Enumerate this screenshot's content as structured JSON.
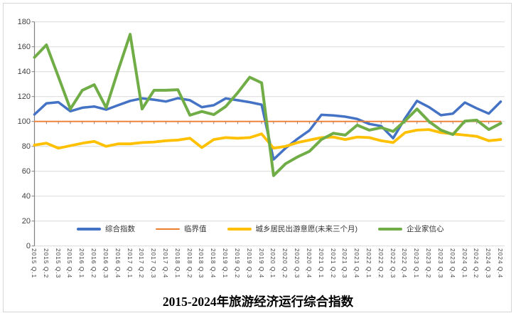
{
  "title": "2015-2024年旅游经济运行综合指数",
  "chart_data": {
    "type": "line",
    "title": "2015-2024年旅游经济运行综合指数",
    "xlabel": "",
    "ylabel": "",
    "ylim": [
      0,
      180
    ],
    "ytick_step": 20,
    "yticks": [
      "0",
      "20",
      "40",
      "60",
      "80",
      "100",
      "120",
      "140",
      "160",
      "180"
    ],
    "grid": true,
    "legend_position": "bottom-inside",
    "grid_color": "#d9d9d9",
    "axis_color": "#808080",
    "label_color": "#404040",
    "categories": [
      "2015 Q.1",
      "2015 Q.2",
      "2015 Q.3",
      "2015 Q.4",
      "2016 Q.1",
      "2016 Q.2",
      "2016 Q.3",
      "2016 Q.4",
      "2017 Q.1",
      "2017 Q.2",
      "2017 Q.3",
      "2017 Q.4",
      "2018 Q.1",
      "2018 Q.2",
      "2018 Q.3",
      "2018 Q.4",
      "2019 Q.1",
      "2019 Q.2",
      "2019 Q.3",
      "2019 Q.4",
      "2020 Q.1",
      "2020 Q.2",
      "2020 Q.3",
      "2020 Q.4",
      "2021 Q.1",
      "2021 Q.2",
      "2021 Q.3",
      "2021 Q.4",
      "2022 Q.1",
      "2022 Q.2",
      "2022 Q.3",
      "2022 Q.4",
      "2023 Q.1",
      "2023 Q.2",
      "2023 Q.3",
      "2023 Q.4",
      "2024 Q.1",
      "2024 Q.2",
      "2024 Q.3",
      "2024 Q.4"
    ],
    "series": [
      {
        "id": "composite-index",
        "name": "综合指数",
        "color": "#4472C4",
        "line_width": 3.5,
        "values": [
          105.6,
          114.5,
          115.5,
          108.2,
          111.0,
          112.0,
          109.5,
          113.0,
          116.5,
          118.5,
          117.5,
          116.0,
          118.7,
          117.0,
          111.5,
          113.0,
          118.5,
          117.0,
          115.5,
          113.5,
          69.5,
          78.5,
          86.0,
          92.8,
          105.3,
          104.8,
          103.8,
          102.0,
          98.0,
          96.3,
          86.5,
          102.5,
          116.5,
          111.5,
          105.0,
          106.3,
          115.2,
          110.5,
          106.3,
          115.9
        ]
      },
      {
        "id": "critical-value",
        "name": "临界值",
        "color": "#ED7D31",
        "line_width": 1.8,
        "values": [
          100,
          100,
          100,
          100,
          100,
          100,
          100,
          100,
          100,
          100,
          100,
          100,
          100,
          100,
          100,
          100,
          100,
          100,
          100,
          100,
          100,
          100,
          100,
          100,
          100,
          100,
          100,
          100,
          100,
          100,
          100,
          100,
          100,
          100,
          100,
          100,
          100,
          100,
          100,
          100
        ]
      },
      {
        "id": "travel-willingness",
        "name": "城乡居民出游意愿(未来三个月)",
        "color": "#FFC000",
        "line_width": 3.8,
        "values": [
          81.0,
          82.5,
          78.5,
          80.5,
          82.5,
          84.0,
          80.0,
          82.0,
          82.0,
          83.0,
          83.5,
          84.5,
          85.0,
          86.5,
          79.0,
          85.5,
          87.0,
          86.5,
          87.0,
          90.0,
          78.5,
          80.0,
          83.0,
          85.0,
          87.0,
          87.5,
          85.5,
          87.5,
          87.0,
          84.5,
          83.0,
          91.0,
          93.0,
          93.5,
          91.0,
          90.0,
          89.0,
          88.0,
          84.5,
          85.5
        ]
      },
      {
        "id": "entrepreneur-confidence",
        "name": "企业家信心",
        "color": "#70AD47",
        "line_width": 4.0,
        "values": [
          151.5,
          161.5,
          136.0,
          110.0,
          125.0,
          129.5,
          111.0,
          141.0,
          170.0,
          110.0,
          125.0,
          125.0,
          125.5,
          105.0,
          108.0,
          105.5,
          112.0,
          123.0,
          135.5,
          131.0,
          56.5,
          66.0,
          71.5,
          76.0,
          85.5,
          90.5,
          89.0,
          97.0,
          93.0,
          95.0,
          92.0,
          100.5,
          110.0,
          100.0,
          93.0,
          89.5,
          100.3,
          101.0,
          93.5,
          98.5
        ]
      }
    ]
  }
}
